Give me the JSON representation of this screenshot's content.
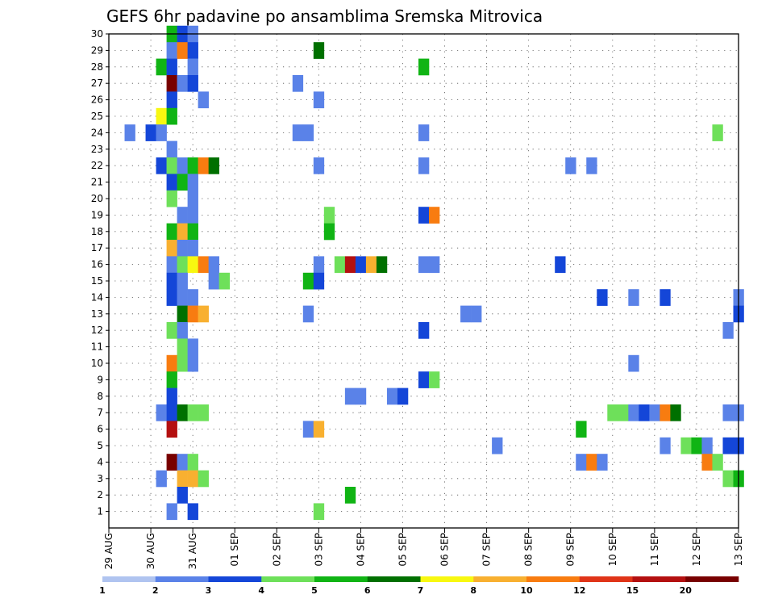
{
  "chart_data": {
    "type": "heatmap",
    "title": "GEFS 6hr padavine po ansamblima Sremska Mitrovica",
    "xlabel": "",
    "ylabel": "",
    "x_ticks": [
      "29 AUG",
      "30 AUG",
      "31 AUG",
      "01 SEP",
      "02 SEP",
      "03 SEP",
      "04 SEP",
      "05 SEP",
      "06 SEP",
      "07 SEP",
      "08 SEP",
      "09 SEP",
      "10 SEP",
      "11 SEP",
      "12 SEP",
      "13 SEP"
    ],
    "xlim_steps": [
      0,
      60
    ],
    "ylim": [
      0,
      30
    ],
    "y_ticks": [
      1,
      2,
      3,
      4,
      5,
      6,
      7,
      8,
      9,
      10,
      11,
      12,
      13,
      14,
      15,
      16,
      17,
      18,
      19,
      20,
      21,
      22,
      23,
      24,
      25,
      26,
      27,
      28,
      29,
      30
    ],
    "grid": true,
    "legend": {
      "position": "bottom",
      "labels": [
        "1",
        "2",
        "3",
        "4",
        "5",
        "6",
        "7",
        "8",
        "10",
        "12",
        "15",
        "20"
      ],
      "colors": [
        "#b0c4f0",
        "#5a82e8",
        "#1446d8",
        "#6ee05a",
        "#10b414",
        "#007000",
        "#f8f810",
        "#f8b030",
        "#f87c10",
        "#e03418",
        "#b41010",
        "#780000"
      ]
    },
    "cells": [
      {
        "t": 6,
        "m": 30,
        "v": 5
      },
      {
        "t": 7,
        "m": 30,
        "v": 3
      },
      {
        "t": 8,
        "m": 30,
        "v": 2
      },
      {
        "t": 6,
        "m": 29,
        "v": 2
      },
      {
        "t": 7,
        "m": 29,
        "v": 10
      },
      {
        "t": 8,
        "m": 29,
        "v": 3
      },
      {
        "t": 20,
        "m": 29,
        "v": 6
      },
      {
        "t": 5,
        "m": 28,
        "v": 5
      },
      {
        "t": 6,
        "m": 28,
        "v": 3
      },
      {
        "t": 8,
        "m": 28,
        "v": 2
      },
      {
        "t": 30,
        "m": 28,
        "v": 5
      },
      {
        "t": 6,
        "m": 27,
        "v": 20
      },
      {
        "t": 7,
        "m": 27,
        "v": 2
      },
      {
        "t": 8,
        "m": 27,
        "v": 3
      },
      {
        "t": 18,
        "m": 27,
        "v": 2
      },
      {
        "t": 6,
        "m": 26,
        "v": 3
      },
      {
        "t": 9,
        "m": 26,
        "v": 2
      },
      {
        "t": 20,
        "m": 26,
        "v": 2
      },
      {
        "t": 5,
        "m": 25,
        "v": 7
      },
      {
        "t": 6,
        "m": 25,
        "v": 5
      },
      {
        "t": 2,
        "m": 24,
        "v": 2
      },
      {
        "t": 4,
        "m": 24,
        "v": 3
      },
      {
        "t": 5,
        "m": 24,
        "v": 2
      },
      {
        "t": 18,
        "m": 24,
        "v": 2
      },
      {
        "t": 19,
        "m": 24,
        "v": 2
      },
      {
        "t": 30,
        "m": 24,
        "v": 2
      },
      {
        "t": 58,
        "m": 24,
        "v": 4
      },
      {
        "t": 6,
        "m": 23,
        "v": 2
      },
      {
        "t": 5,
        "m": 22,
        "v": 3
      },
      {
        "t": 6,
        "m": 22,
        "v": 4
      },
      {
        "t": 7,
        "m": 22,
        "v": 2
      },
      {
        "t": 8,
        "m": 22,
        "v": 5
      },
      {
        "t": 9,
        "m": 22,
        "v": 10
      },
      {
        "t": 10,
        "m": 22,
        "v": 6
      },
      {
        "t": 20,
        "m": 22,
        "v": 2
      },
      {
        "t": 30,
        "m": 22,
        "v": 2
      },
      {
        "t": 44,
        "m": 22,
        "v": 2
      },
      {
        "t": 46,
        "m": 22,
        "v": 2
      },
      {
        "t": 6,
        "m": 21,
        "v": 3
      },
      {
        "t": 7,
        "m": 21,
        "v": 5
      },
      {
        "t": 8,
        "m": 21,
        "v": 2
      },
      {
        "t": 6,
        "m": 20,
        "v": 4
      },
      {
        "t": 8,
        "m": 20,
        "v": 2
      },
      {
        "t": 7,
        "m": 19,
        "v": 2
      },
      {
        "t": 8,
        "m": 19,
        "v": 2
      },
      {
        "t": 21,
        "m": 19,
        "v": 4
      },
      {
        "t": 30,
        "m": 19,
        "v": 3
      },
      {
        "t": 31,
        "m": 19,
        "v": 10
      },
      {
        "t": 6,
        "m": 18,
        "v": 5
      },
      {
        "t": 7,
        "m": 18,
        "v": 8
      },
      {
        "t": 8,
        "m": 18,
        "v": 5
      },
      {
        "t": 21,
        "m": 18,
        "v": 5
      },
      {
        "t": 6,
        "m": 17,
        "v": 8
      },
      {
        "t": 7,
        "m": 17,
        "v": 2
      },
      {
        "t": 8,
        "m": 17,
        "v": 2
      },
      {
        "t": 6,
        "m": 16,
        "v": 2
      },
      {
        "t": 7,
        "m": 16,
        "v": 4
      },
      {
        "t": 8,
        "m": 16,
        "v": 7
      },
      {
        "t": 9,
        "m": 16,
        "v": 10
      },
      {
        "t": 10,
        "m": 16,
        "v": 2
      },
      {
        "t": 20,
        "m": 16,
        "v": 2
      },
      {
        "t": 22,
        "m": 16,
        "v": 4
      },
      {
        "t": 23,
        "m": 16,
        "v": 15
      },
      {
        "t": 24,
        "m": 16,
        "v": 3
      },
      {
        "t": 25,
        "m": 16,
        "v": 8
      },
      {
        "t": 26,
        "m": 16,
        "v": 6
      },
      {
        "t": 30,
        "m": 16,
        "v": 2
      },
      {
        "t": 31,
        "m": 16,
        "v": 2
      },
      {
        "t": 43,
        "m": 16,
        "v": 3
      },
      {
        "t": 6,
        "m": 15,
        "v": 3
      },
      {
        "t": 7,
        "m": 15,
        "v": 2
      },
      {
        "t": 10,
        "m": 15,
        "v": 2
      },
      {
        "t": 11,
        "m": 15,
        "v": 4
      },
      {
        "t": 19,
        "m": 15,
        "v": 5
      },
      {
        "t": 20,
        "m": 15,
        "v": 3
      },
      {
        "t": 6,
        "m": 14,
        "v": 3
      },
      {
        "t": 7,
        "m": 14,
        "v": 2
      },
      {
        "t": 8,
        "m": 14,
        "v": 2
      },
      {
        "t": 47,
        "m": 14,
        "v": 3
      },
      {
        "t": 50,
        "m": 14,
        "v": 2
      },
      {
        "t": 53,
        "m": 14,
        "v": 3
      },
      {
        "t": 60,
        "m": 14,
        "v": 2
      },
      {
        "t": 7,
        "m": 13,
        "v": 6
      },
      {
        "t": 8,
        "m": 13,
        "v": 10
      },
      {
        "t": 9,
        "m": 13,
        "v": 8
      },
      {
        "t": 19,
        "m": 13,
        "v": 2
      },
      {
        "t": 34,
        "m": 13,
        "v": 2
      },
      {
        "t": 35,
        "m": 13,
        "v": 2
      },
      {
        "t": 60,
        "m": 13,
        "v": 3
      },
      {
        "t": 6,
        "m": 12,
        "v": 4
      },
      {
        "t": 7,
        "m": 12,
        "v": 2
      },
      {
        "t": 30,
        "m": 12,
        "v": 3
      },
      {
        "t": 59,
        "m": 12,
        "v": 2
      },
      {
        "t": 7,
        "m": 11,
        "v": 4
      },
      {
        "t": 8,
        "m": 11,
        "v": 2
      },
      {
        "t": 6,
        "m": 10,
        "v": 10
      },
      {
        "t": 7,
        "m": 10,
        "v": 4
      },
      {
        "t": 8,
        "m": 10,
        "v": 2
      },
      {
        "t": 50,
        "m": 10,
        "v": 2
      },
      {
        "t": 6,
        "m": 9,
        "v": 5
      },
      {
        "t": 30,
        "m": 9,
        "v": 3
      },
      {
        "t": 31,
        "m": 9,
        "v": 4
      },
      {
        "t": 6,
        "m": 8,
        "v": 3
      },
      {
        "t": 23,
        "m": 8,
        "v": 2
      },
      {
        "t": 24,
        "m": 8,
        "v": 2
      },
      {
        "t": 27,
        "m": 8,
        "v": 2
      },
      {
        "t": 28,
        "m": 8,
        "v": 3
      },
      {
        "t": 5,
        "m": 7,
        "v": 2
      },
      {
        "t": 6,
        "m": 7,
        "v": 3
      },
      {
        "t": 7,
        "m": 7,
        "v": 6
      },
      {
        "t": 8,
        "m": 7,
        "v": 4
      },
      {
        "t": 9,
        "m": 7,
        "v": 4
      },
      {
        "t": 48,
        "m": 7,
        "v": 4
      },
      {
        "t": 49,
        "m": 7,
        "v": 4
      },
      {
        "t": 50,
        "m": 7,
        "v": 2
      },
      {
        "t": 51,
        "m": 7,
        "v": 3
      },
      {
        "t": 52,
        "m": 7,
        "v": 2
      },
      {
        "t": 53,
        "m": 7,
        "v": 10
      },
      {
        "t": 54,
        "m": 7,
        "v": 6
      },
      {
        "t": 59,
        "m": 7,
        "v": 2
      },
      {
        "t": 60,
        "m": 7,
        "v": 2
      },
      {
        "t": 6,
        "m": 6,
        "v": 15
      },
      {
        "t": 19,
        "m": 6,
        "v": 2
      },
      {
        "t": 20,
        "m": 6,
        "v": 8
      },
      {
        "t": 45,
        "m": 6,
        "v": 5
      },
      {
        "t": 37,
        "m": 5,
        "v": 2
      },
      {
        "t": 53,
        "m": 5,
        "v": 2
      },
      {
        "t": 55,
        "m": 5,
        "v": 4
      },
      {
        "t": 56,
        "m": 5,
        "v": 5
      },
      {
        "t": 57,
        "m": 5,
        "v": 2
      },
      {
        "t": 59,
        "m": 5,
        "v": 3
      },
      {
        "t": 60,
        "m": 5,
        "v": 3
      },
      {
        "t": 6,
        "m": 4,
        "v": 20
      },
      {
        "t": 7,
        "m": 4,
        "v": 2
      },
      {
        "t": 8,
        "m": 4,
        "v": 4
      },
      {
        "t": 45,
        "m": 4,
        "v": 2
      },
      {
        "t": 46,
        "m": 4,
        "v": 10
      },
      {
        "t": 47,
        "m": 4,
        "v": 2
      },
      {
        "t": 57,
        "m": 4,
        "v": 10
      },
      {
        "t": 58,
        "m": 4,
        "v": 4
      },
      {
        "t": 5,
        "m": 3,
        "v": 2
      },
      {
        "t": 7,
        "m": 3,
        "v": 8
      },
      {
        "t": 8,
        "m": 3,
        "v": 8
      },
      {
        "t": 9,
        "m": 3,
        "v": 4
      },
      {
        "t": 59,
        "m": 3,
        "v": 4
      },
      {
        "t": 60,
        "m": 3,
        "v": 5
      },
      {
        "t": 7,
        "m": 2,
        "v": 3
      },
      {
        "t": 23,
        "m": 2,
        "v": 5
      },
      {
        "t": 6,
        "m": 1,
        "v": 2
      },
      {
        "t": 8,
        "m": 1,
        "v": 3
      },
      {
        "t": 20,
        "m": 1,
        "v": 4
      }
    ]
  }
}
